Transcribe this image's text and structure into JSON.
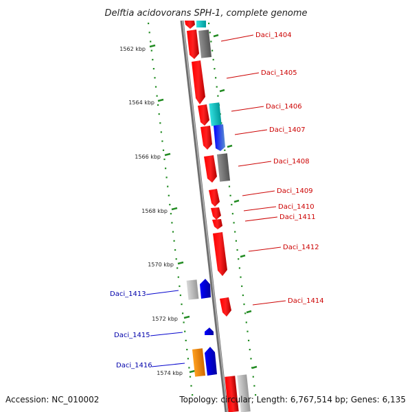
{
  "title": "Delftia acidovorans SPH-1, complete genome",
  "footer": {
    "accession": "Accession: NC_010002",
    "summary": "Topology: circular; Length: 6,767,514 bp; Genes: 6,135"
  },
  "scale_labels": [
    "1562 kbp",
    "1564 kbp",
    "1566 kbp",
    "1568 kbp",
    "1570 kbp",
    "1572 kbp",
    "1574 kbp"
  ],
  "genes_forward": [
    "Daci_1404",
    "Daci_1405",
    "Daci_1406",
    "Daci_1407",
    "Daci_1408",
    "Daci_1409",
    "Daci_1410",
    "Daci_1411",
    "Daci_1412",
    "Daci_1414"
  ],
  "genes_reverse": [
    "Daci_1413",
    "Daci_1415",
    "Daci_1416"
  ],
  "colors": {
    "forward_gene": "#ff0000",
    "reverse_gene": "#0000ff",
    "gray_feature": "#808080",
    "light_gray_feature": "#c8c8c8",
    "cyan_feature": "#00cccc",
    "orange_feature": "#ff8c00",
    "dotted_scale": "#228b22",
    "backbone": "#7a7a7a"
  }
}
